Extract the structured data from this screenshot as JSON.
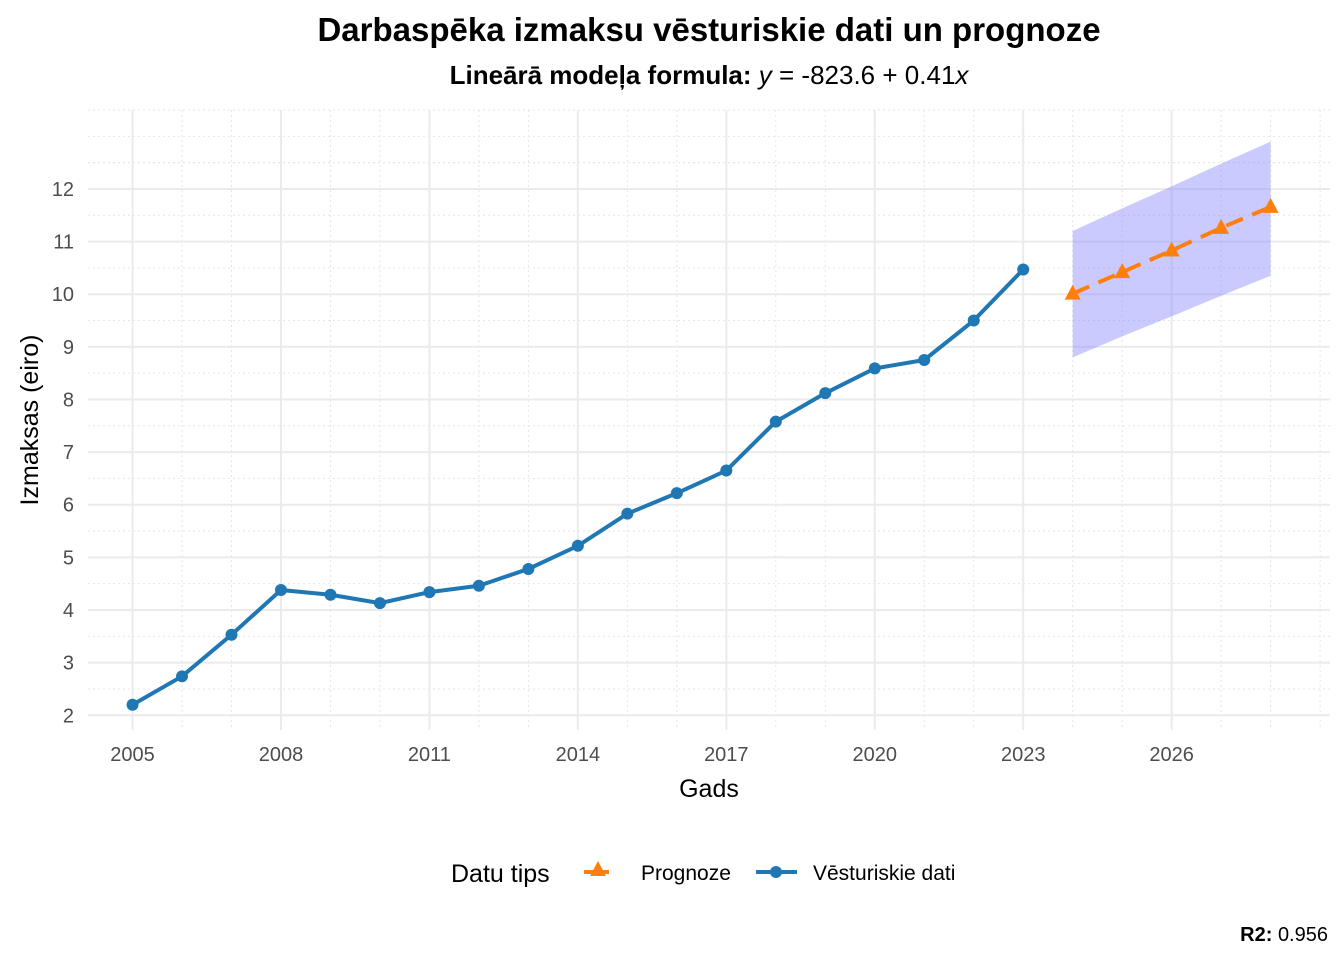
{
  "chart_data": {
    "type": "line",
    "title": "Darbaspēka izmaksu vēsturiskie dati un prognoze",
    "subtitle": {
      "prefix": "Lineārā modeļa formula: ",
      "y_var": "y",
      "equals": " = ",
      "intercept": "-823.6",
      "plus": " + ",
      "slope": "0.41",
      "x_var": "x"
    },
    "xlabel": "Gads",
    "ylabel": "Izmaksas (eiro)",
    "xlim": [
      2004.1,
      2029.2
    ],
    "ylim": [
      1.72,
      13.5
    ],
    "x_ticks": [
      2005,
      2008,
      2011,
      2014,
      2017,
      2020,
      2023,
      2026
    ],
    "y_ticks": [
      2,
      3,
      4,
      5,
      6,
      7,
      8,
      9,
      10,
      11,
      12
    ],
    "grid": true,
    "legend": {
      "title": "Datu tips",
      "position": "bottom",
      "entries": [
        "Prognoze",
        "Vēsturiskie dati"
      ]
    },
    "series": [
      {
        "name": "Vēsturiskie dati",
        "color": "#1f77b4",
        "marker": "circle",
        "line": "solid",
        "x": [
          2005,
          2006,
          2007,
          2008,
          2009,
          2010,
          2011,
          2012,
          2013,
          2014,
          2015,
          2016,
          2017,
          2018,
          2019,
          2020,
          2021,
          2022,
          2023
        ],
        "values": [
          2.2,
          2.74,
          3.53,
          4.38,
          4.29,
          4.13,
          4.34,
          4.46,
          4.78,
          5.22,
          5.83,
          6.22,
          6.65,
          7.58,
          8.12,
          8.59,
          8.75,
          9.5,
          10.47
        ]
      },
      {
        "name": "Prognoze",
        "color": "#ff7f0e",
        "marker": "triangle",
        "line": "dashed",
        "x": [
          2024,
          2025,
          2026,
          2027,
          2028
        ],
        "values": [
          10.01,
          10.42,
          10.83,
          11.26,
          11.66
        ],
        "ci_lower": [
          8.8,
          9.2,
          9.58,
          9.97,
          10.35
        ],
        "ci_upper": [
          11.2,
          11.63,
          12.05,
          12.48,
          12.9
        ],
        "ci_color": "#8080ff"
      }
    ],
    "caption": {
      "label": "R2:",
      "value": "0.956"
    }
  }
}
